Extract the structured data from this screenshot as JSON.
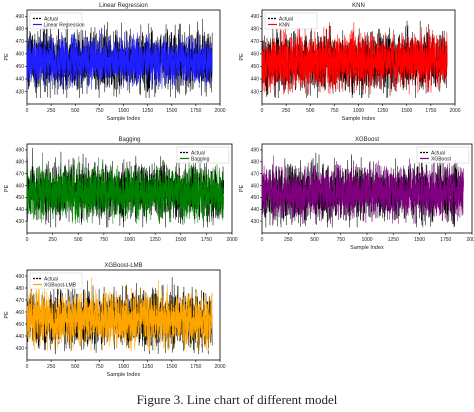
{
  "figure": {
    "caption": "Figure 3.    Line chart of different model"
  },
  "chart_data": [
    {
      "type": "line",
      "title": "Linear Regression",
      "xlabel": "Sample Index",
      "ylabel": "PE",
      "xlim": [
        0,
        2000
      ],
      "ylim": [
        420,
        495
      ],
      "xticks": [
        0,
        250,
        500,
        750,
        1000,
        1250,
        1500,
        1750,
        2000
      ],
      "yticks": [
        430,
        440,
        450,
        460,
        470,
        480,
        490
      ],
      "legend_position": "top-left",
      "series": [
        {
          "name": "Actual",
          "color": "#000000",
          "n_points": 1920,
          "mean": 454,
          "range": [
            425,
            495
          ]
        },
        {
          "name": "Linear Regression",
          "color": "#1f1fff",
          "n_points": 1920,
          "mean": 454,
          "range": [
            432,
            487
          ]
        }
      ]
    },
    {
      "type": "line",
      "title": "KNN",
      "xlabel": "Sample Index",
      "ylabel": "PE",
      "xlim": [
        0,
        2000
      ],
      "ylim": [
        420,
        495
      ],
      "xticks": [
        0,
        250,
        500,
        750,
        1000,
        1250,
        1500,
        1750,
        2000
      ],
      "yticks": [
        430,
        440,
        450,
        460,
        470,
        480,
        490
      ],
      "legend_position": "top-left",
      "series": [
        {
          "name": "Actual",
          "color": "#000000",
          "n_points": 1920,
          "mean": 454,
          "range": [
            425,
            495
          ]
        },
        {
          "name": "KNN",
          "color": "#ff0000",
          "n_points": 1920,
          "mean": 454,
          "range": [
            428,
            492
          ]
        }
      ]
    },
    {
      "type": "line",
      "title": "Bagging",
      "xlabel": "",
      "ylabel": "PE",
      "xlim": [
        0,
        2000
      ],
      "ylim": [
        420,
        495
      ],
      "xticks": [
        0,
        250,
        500,
        750,
        1000,
        1250,
        1500,
        1750,
        2000
      ],
      "yticks": [
        430,
        440,
        450,
        460,
        470,
        480,
        490
      ],
      "legend_position": "top-right",
      "series": [
        {
          "name": "Actual",
          "color": "#000000",
          "n_points": 1920,
          "mean": 454,
          "range": [
            425,
            495
          ]
        },
        {
          "name": "Bagging",
          "color": "#008000",
          "n_points": 1920,
          "mean": 454,
          "range": [
            428,
            492
          ]
        }
      ]
    },
    {
      "type": "line",
      "title": "XGBoost",
      "xlabel": "Sample Index",
      "ylabel": "PE",
      "xlim": [
        0,
        2000
      ],
      "ylim": [
        420,
        495
      ],
      "xticks": [
        0,
        250,
        500,
        750,
        1000,
        1250,
        1500,
        1750,
        2000
      ],
      "yticks": [
        430,
        440,
        450,
        460,
        470,
        480,
        490
      ],
      "legend_position": "top-right",
      "series": [
        {
          "name": "Actual",
          "color": "#000000",
          "n_points": 1920,
          "mean": 454,
          "range": [
            425,
            495
          ]
        },
        {
          "name": "XGBoost",
          "color": "#800080",
          "n_points": 1920,
          "mean": 454,
          "range": [
            428,
            492
          ]
        }
      ]
    },
    {
      "type": "line",
      "title": "XGBoost-LMB",
      "xlabel": "Sample Index",
      "ylabel": "PE",
      "xlim": [
        0,
        2000
      ],
      "ylim": [
        420,
        495
      ],
      "xticks": [
        0,
        250,
        500,
        750,
        1000,
        1250,
        1500,
        1750,
        2000
      ],
      "yticks": [
        430,
        440,
        450,
        460,
        470,
        480,
        490
      ],
      "legend_position": "top-left",
      "series": [
        {
          "name": "Actual",
          "color": "#000000",
          "n_points": 1920,
          "mean": 454,
          "range": [
            425,
            495
          ]
        },
        {
          "name": "XGBoost-LMB",
          "color": "#ffa500",
          "n_points": 1920,
          "mean": 454,
          "range": [
            428,
            492
          ]
        }
      ]
    }
  ]
}
